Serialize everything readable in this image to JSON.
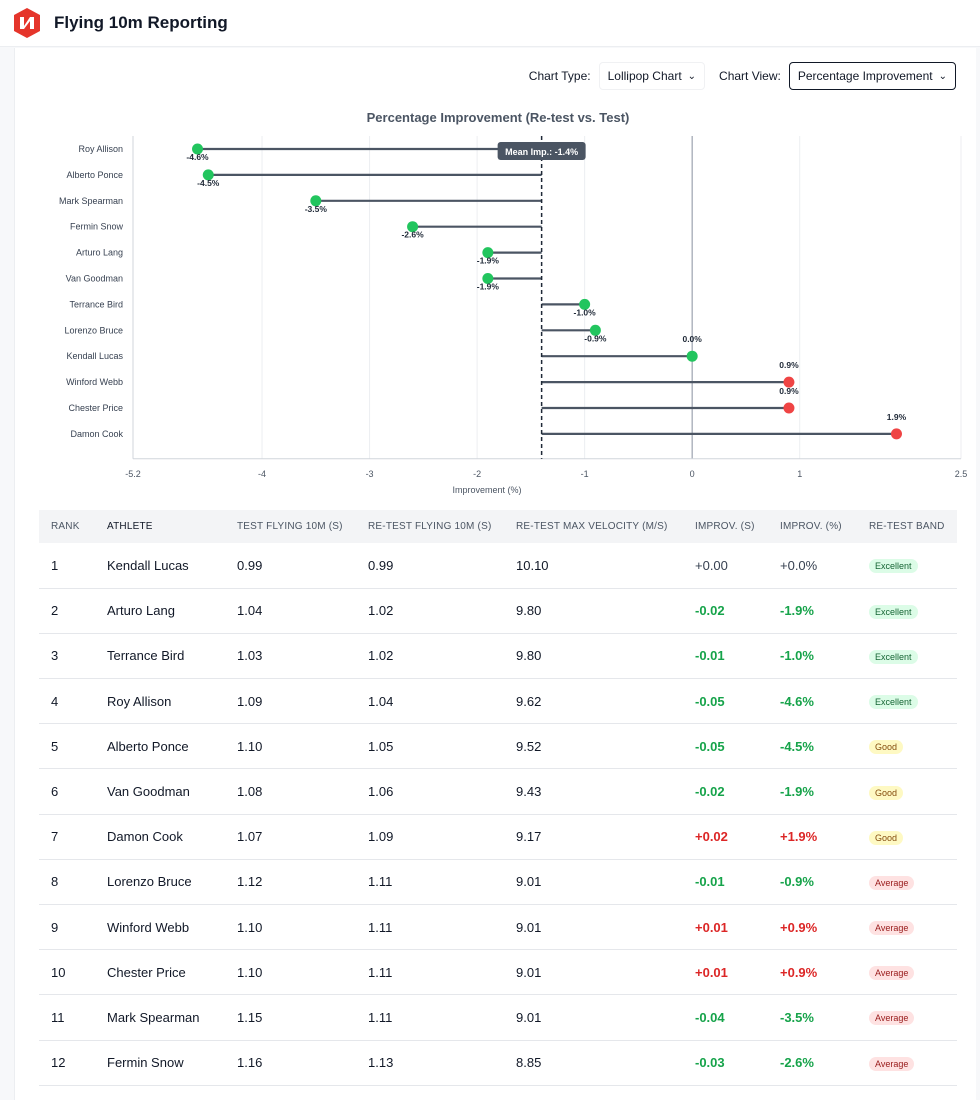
{
  "app": {
    "title": "Flying 10m Reporting",
    "logo_icon": "lightning-bolt-logo"
  },
  "controls": {
    "chart_type_label": "Chart Type:",
    "chart_type_value": "Lollipop Chart",
    "chart_view_label": "Chart View:",
    "chart_view_value": "Percentage Improvement"
  },
  "chart_data": {
    "type": "lollipop",
    "title": "Percentage Improvement (Re-test vs. Test)",
    "xlabel": "Improvement (%)",
    "xlim": [
      -5.2,
      2.5
    ],
    "xticks": [
      -5.2,
      -4,
      -3,
      -2,
      -1,
      0,
      1,
      2.5
    ],
    "xtick_labels": [
      "-5.2",
      "-4",
      "-3",
      "-2",
      "-1",
      "0",
      "1",
      "2.5"
    ],
    "mean": -1.4,
    "mean_label": "Mean Imp.: -1.4%",
    "categories": [
      "Roy Allison",
      "Alberto Ponce",
      "Mark Spearman",
      "Fermin Snow",
      "Arturo Lang",
      "Van Goodman",
      "Terrance Bird",
      "Lorenzo Bruce",
      "Kendall Lucas",
      "Winford Webb",
      "Chester Price",
      "Damon Cook"
    ],
    "values": [
      -4.6,
      -4.5,
      -3.5,
      -2.6,
      -1.9,
      -1.9,
      -1.0,
      -0.9,
      0.0,
      0.9,
      0.9,
      1.9
    ],
    "labels": [
      "-4.6%",
      "-4.5%",
      "-3.5%",
      "-2.6%",
      "-1.9%",
      "-1.9%",
      "-1.0%",
      "-0.9%",
      "0.0%",
      "0.9%",
      "0.9%",
      "1.9%"
    ],
    "colors": {
      "improved": "#22c55e",
      "worse": "#ef4444",
      "stem": "#4b5563",
      "mean_line": "#1f2937"
    }
  },
  "table": {
    "headers": [
      "RANK",
      "ATHLETE",
      "TEST FLYING 10M (S)",
      "RE-TEST FLYING 10M (S)",
      "RE-TEST MAX VELOCITY (M/S)",
      "IMPROV. (S)",
      "IMPROV. (%)",
      "RE-TEST BAND"
    ],
    "rows": [
      {
        "rank": "1",
        "athlete": "Kendall Lucas",
        "test": "0.99",
        "retest": "0.99",
        "vmax": "10.10",
        "imp_s": "+0.00",
        "imp_p": "+0.0%",
        "band": "Excellent",
        "trend": "neutral",
        "band_class": "exc"
      },
      {
        "rank": "2",
        "athlete": "Arturo Lang",
        "test": "1.04",
        "retest": "1.02",
        "vmax": "9.80",
        "imp_s": "-0.02",
        "imp_p": "-1.9%",
        "band": "Excellent",
        "trend": "good",
        "band_class": "exc"
      },
      {
        "rank": "3",
        "athlete": "Terrance Bird",
        "test": "1.03",
        "retest": "1.02",
        "vmax": "9.80",
        "imp_s": "-0.01",
        "imp_p": "-1.0%",
        "band": "Excellent",
        "trend": "good",
        "band_class": "exc"
      },
      {
        "rank": "4",
        "athlete": "Roy Allison",
        "test": "1.09",
        "retest": "1.04",
        "vmax": "9.62",
        "imp_s": "-0.05",
        "imp_p": "-4.6%",
        "band": "Excellent",
        "trend": "good",
        "band_class": "exc"
      },
      {
        "rank": "5",
        "athlete": "Alberto Ponce",
        "test": "1.10",
        "retest": "1.05",
        "vmax": "9.52",
        "imp_s": "-0.05",
        "imp_p": "-4.5%",
        "band": "Good",
        "trend": "good",
        "band_class": "good"
      },
      {
        "rank": "6",
        "athlete": "Van Goodman",
        "test": "1.08",
        "retest": "1.06",
        "vmax": "9.43",
        "imp_s": "-0.02",
        "imp_p": "-1.9%",
        "band": "Good",
        "trend": "good",
        "band_class": "good"
      },
      {
        "rank": "7",
        "athlete": "Damon Cook",
        "test": "1.07",
        "retest": "1.09",
        "vmax": "9.17",
        "imp_s": "+0.02",
        "imp_p": "+1.9%",
        "band": "Good",
        "trend": "bad",
        "band_class": "good"
      },
      {
        "rank": "8",
        "athlete": "Lorenzo Bruce",
        "test": "1.12",
        "retest": "1.11",
        "vmax": "9.01",
        "imp_s": "-0.01",
        "imp_p": "-0.9%",
        "band": "Average",
        "trend": "good",
        "band_class": "avg"
      },
      {
        "rank": "9",
        "athlete": "Winford Webb",
        "test": "1.10",
        "retest": "1.11",
        "vmax": "9.01",
        "imp_s": "+0.01",
        "imp_p": "+0.9%",
        "band": "Average",
        "trend": "bad",
        "band_class": "avg"
      },
      {
        "rank": "10",
        "athlete": "Chester Price",
        "test": "1.10",
        "retest": "1.11",
        "vmax": "9.01",
        "imp_s": "+0.01",
        "imp_p": "+0.9%",
        "band": "Average",
        "trend": "bad",
        "band_class": "avg"
      },
      {
        "rank": "11",
        "athlete": "Mark Spearman",
        "test": "1.15",
        "retest": "1.11",
        "vmax": "9.01",
        "imp_s": "-0.04",
        "imp_p": "-3.5%",
        "band": "Average",
        "trend": "good",
        "band_class": "avg"
      },
      {
        "rank": "12",
        "athlete": "Fermin Snow",
        "test": "1.16",
        "retest": "1.13",
        "vmax": "8.85",
        "imp_s": "-0.03",
        "imp_p": "-2.6%",
        "band": "Average",
        "trend": "good",
        "band_class": "avg"
      }
    ]
  }
}
